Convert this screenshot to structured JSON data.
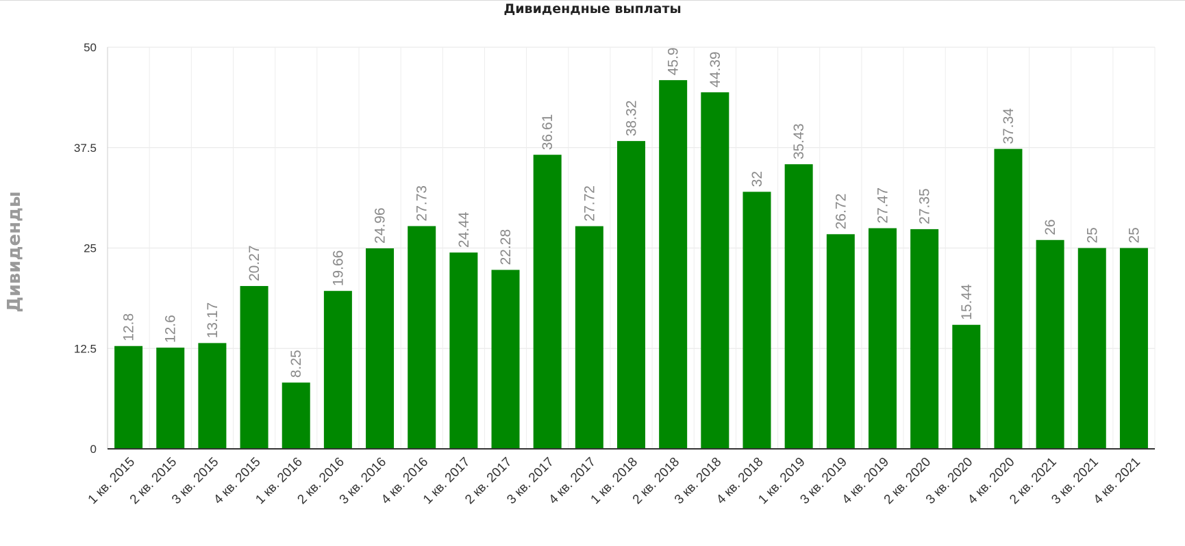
{
  "chart_data": {
    "type": "bar",
    "title": "Дивидендные выплаты",
    "ylabel": "Дивиденды",
    "xlabel": "",
    "ylim": [
      0,
      50
    ],
    "yticks": [
      "0",
      "12.5",
      "25",
      "37.5",
      "50"
    ],
    "grid": true,
    "legend": "none",
    "bar_color": "#008800",
    "categories": [
      "1 кв. 2015",
      "2 кв. 2015",
      "3 кв. 2015",
      "4 кв. 2015",
      "1 кв. 2016",
      "2 кв. 2016",
      "3 кв. 2016",
      "4 кв. 2016",
      "1 кв. 2017",
      "2 кв. 2017",
      "3 кв. 2017",
      "4 кв. 2017",
      "1 кв. 2018",
      "2 кв. 2018",
      "3 кв. 2018",
      "4 кв. 2018",
      "1 кв. 2019",
      "3 кв. 2019",
      "4 кв. 2019",
      "2 кв. 2020",
      "3 кв. 2020",
      "4 кв. 2020",
      "2 кв. 2021",
      "3 кв. 2021",
      "4 кв. 2021"
    ],
    "values": [
      12.8,
      12.6,
      13.17,
      20.27,
      8.25,
      19.66,
      24.96,
      27.73,
      24.44,
      22.28,
      36.61,
      27.72,
      38.32,
      45.9,
      44.39,
      32,
      35.43,
      26.72,
      27.47,
      27.35,
      15.44,
      37.34,
      26,
      25,
      25
    ],
    "value_labels": [
      "12.8",
      "12.6",
      "13.17",
      "20.27",
      "8.25",
      "19.66",
      "24.96",
      "27.73",
      "24.44",
      "22.28",
      "36.61",
      "27.72",
      "38.32",
      "45.9",
      "44.39",
      "32",
      "35.43",
      "26.72",
      "27.47",
      "27.35",
      "15.44",
      "37.34",
      "26",
      "25",
      "25"
    ]
  }
}
